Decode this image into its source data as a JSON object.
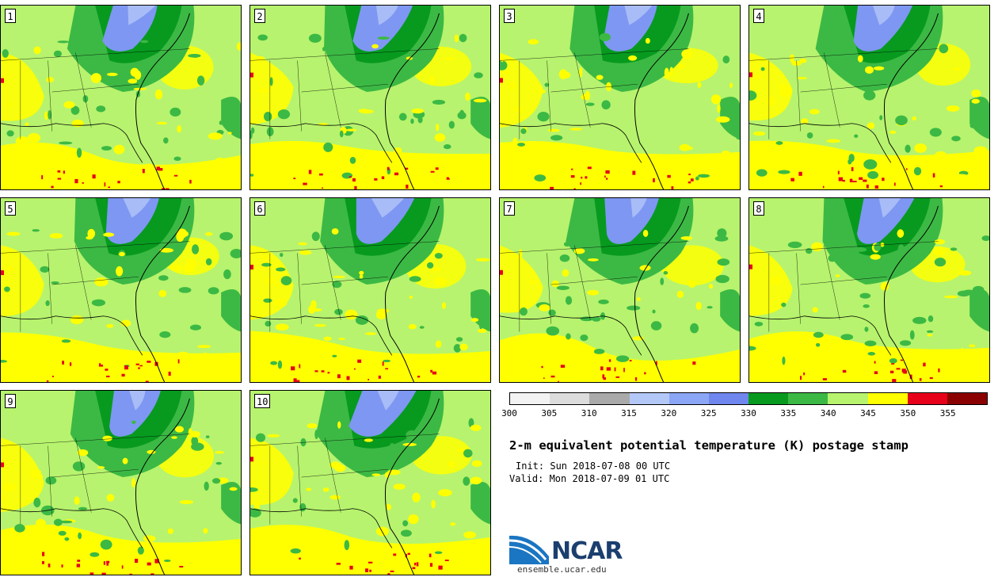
{
  "panels": [
    {
      "label": "1"
    },
    {
      "label": "2"
    },
    {
      "label": "3"
    },
    {
      "label": "4"
    },
    {
      "label": "5"
    },
    {
      "label": "6"
    },
    {
      "label": "7"
    },
    {
      "label": "8"
    },
    {
      "label": "9"
    },
    {
      "label": "10"
    }
  ],
  "colorbar": {
    "ticks": [
      "300",
      "305",
      "310",
      "315",
      "320",
      "325",
      "330",
      "335",
      "340",
      "345",
      "350",
      "355"
    ],
    "colors": [
      "#f2f2f2",
      "#dcdcdc",
      "#aaaaaa",
      "#b4c8f8",
      "#8ca6f6",
      "#6f86ee",
      "#079a1f",
      "#3cb944",
      "#b7f36e",
      "#ffff00",
      "#e6001a",
      "#8b0000"
    ]
  },
  "title": "2-m equivalent potential temperature (K) postage stamp",
  "init": "Init: Sun 2018-07-08 00 UTC",
  "valid": "Valid: Mon 2018-07-09 01 UTC",
  "logo": {
    "word": "NCAR",
    "url": "ensemble.ucar.edu"
  },
  "map_colors": {
    "base": "#b7f36e",
    "yellow": "#ffff00",
    "green": "#3cb944",
    "dark_green": "#079a1f",
    "blue": "#7e97f2",
    "light_blue": "#a8bcf7",
    "red": "#e6001a"
  }
}
